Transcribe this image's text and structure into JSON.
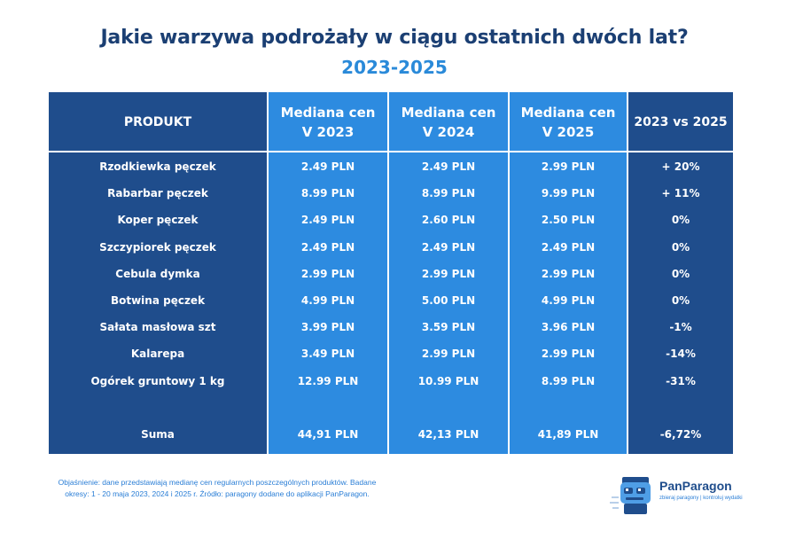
{
  "title": "Jakie warzywa podrożały w ciągu ostatnich dwóch lat?",
  "subtitle": "2023-2025",
  "table": {
    "headers": [
      "PRODUKT",
      "Mediana cen V 2023",
      "Mediana cen V 2024",
      "Mediana cen V 2025",
      "2023 vs 2025"
    ],
    "rows": [
      [
        "Rzodkiewka pęczek",
        "2.49 PLN",
        "2.49 PLN",
        "2.99 PLN",
        "+ 20%"
      ],
      [
        "Rabarbar pęczek",
        "8.99 PLN",
        "8.99 PLN",
        "9.99 PLN",
        "+ 11%"
      ],
      [
        "Koper pęczek",
        "2.49 PLN",
        "2.60 PLN",
        "2.50 PLN",
        "0%"
      ],
      [
        "Szczypiorek pęczek",
        "2.49 PLN",
        "2.49 PLN",
        "2.49 PLN",
        "0%"
      ],
      [
        "Cebula dymka",
        "2.99 PLN",
        "2.99 PLN",
        "2.99 PLN",
        "0%"
      ],
      [
        "Botwina pęczek",
        "4.99 PLN",
        "5.00 PLN",
        "4.99 PLN",
        "0%"
      ],
      [
        "Sałata masłowa szt",
        "3.99 PLN",
        "3.59 PLN",
        "3.96 PLN",
        "-1%"
      ],
      [
        "Kalarepa",
        "3.49 PLN",
        "2.99 PLN",
        "2.99 PLN",
        "-14%"
      ],
      [
        "Ogórek gruntowy 1 kg",
        "12.99 PLN",
        "10.99 PLN",
        "8.99 PLN",
        "-31%"
      ]
    ],
    "total": [
      "Suma",
      "44,91 PLN",
      "42,13 PLN",
      "41,89 PLN",
      "-6,72%"
    ]
  },
  "footnote": "Objaśnienie: dane przedstawiają medianę cen regularnych poszczególnych produktów. Badane okresy: 1 - 20 maja 2023, 2024 i 2025 r. Źródło: paragony dodane do aplikacji PanParagon.",
  "logo": {
    "brand": "PanParagon",
    "tagline": "zbieraj paragony | kontroluj wydatki",
    "icon": "robot-mascot-icon"
  },
  "colors": {
    "title": "#1b3f73",
    "subtitle": "#2a8ad9",
    "dark_column": "#1f4d8c",
    "light_column": "#2d8be0"
  }
}
